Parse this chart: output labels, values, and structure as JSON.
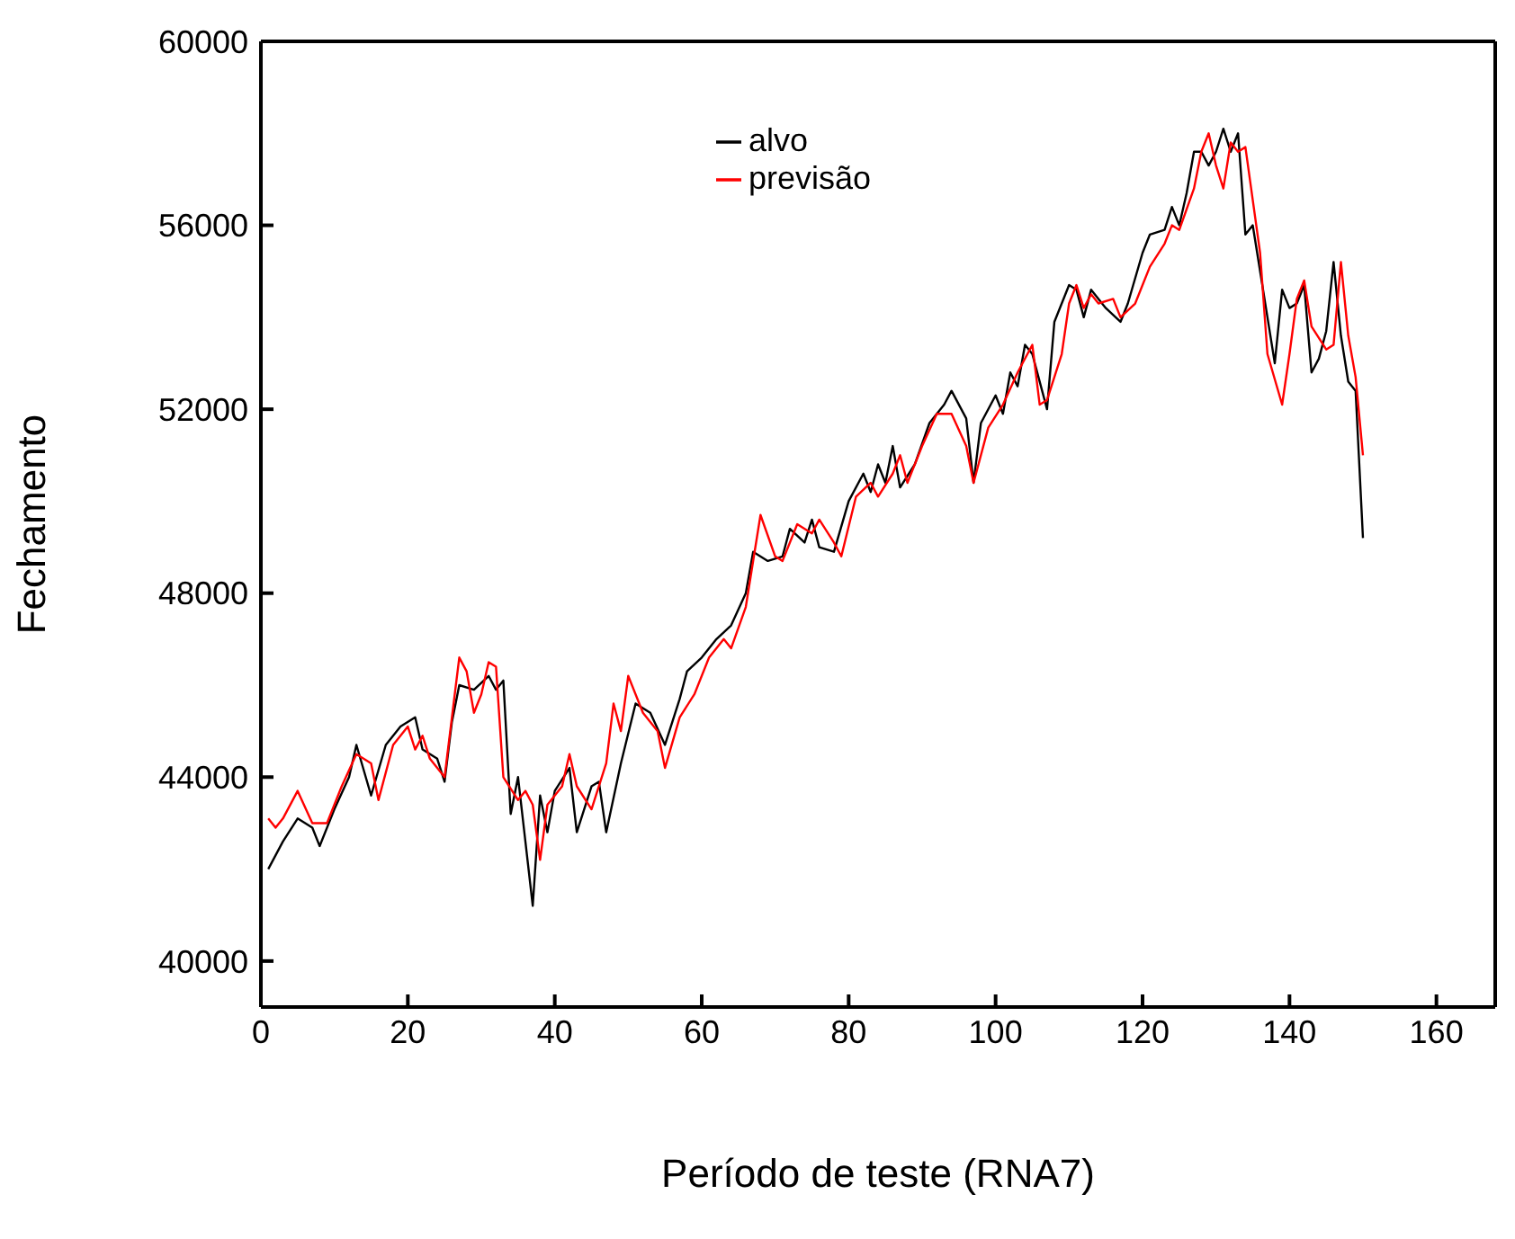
{
  "chart_data": {
    "type": "line",
    "xlabel": "Período de teste (RNA7)",
    "ylabel": "Fechamento",
    "xlim": [
      0,
      168
    ],
    "ylim": [
      39000,
      60000
    ],
    "xticks": [
      0,
      20,
      40,
      60,
      80,
      100,
      120,
      140,
      160
    ],
    "yticks": [
      40000,
      44000,
      48000,
      52000,
      56000,
      60000
    ],
    "legend": "top",
    "marker": "none",
    "line_style": "solid",
    "series": [
      {
        "name": "alvo",
        "color": "#000000",
        "x": [
          1,
          3,
          5,
          7,
          8,
          10,
          12,
          13,
          15,
          17,
          19,
          21,
          22,
          24,
          25,
          26,
          27,
          29,
          31,
          32,
          33,
          34,
          35,
          37,
          38,
          39,
          40,
          42,
          43,
          45,
          46,
          47,
          49,
          51,
          53,
          55,
          57,
          58,
          60,
          62,
          64,
          66,
          67,
          69,
          71,
          72,
          74,
          75,
          76,
          78,
          80,
          82,
          83,
          84,
          85,
          86,
          87,
          89,
          91,
          93,
          94,
          96,
          97,
          98,
          100,
          101,
          102,
          103,
          104,
          105,
          107,
          108,
          110,
          111,
          112,
          113,
          115,
          117,
          118,
          120,
          121,
          123,
          124,
          125,
          126,
          127,
          128,
          129,
          130,
          131,
          132,
          133,
          134,
          135,
          137,
          138,
          139,
          140,
          141,
          142,
          143,
          144,
          145,
          146,
          147,
          148,
          149,
          150
        ],
        "values": [
          42000,
          42600,
          43100,
          42900,
          42500,
          43300,
          44000,
          44700,
          43600,
          44700,
          45100,
          45300,
          44600,
          44400,
          43900,
          45200,
          46000,
          45900,
          46200,
          45900,
          46100,
          43200,
          44000,
          41200,
          43600,
          42800,
          43700,
          44200,
          42800,
          43800,
          43900,
          42800,
          44300,
          45600,
          45400,
          44700,
          45700,
          46300,
          46600,
          47000,
          47300,
          48000,
          48900,
          48700,
          48800,
          49400,
          49100,
          49600,
          49000,
          48900,
          50000,
          50600,
          50200,
          50800,
          50400,
          51200,
          50300,
          50800,
          51700,
          52100,
          52400,
          51800,
          50400,
          51700,
          52300,
          51900,
          52800,
          52500,
          53400,
          53200,
          52000,
          53900,
          54700,
          54600,
          54000,
          54600,
          54200,
          53900,
          54300,
          55400,
          55800,
          55900,
          56400,
          56000,
          56700,
          57600,
          57600,
          57300,
          57600,
          58100,
          57600,
          58000,
          55800,
          56000,
          54000,
          53000,
          54600,
          54200,
          54300,
          54700,
          52800,
          53100,
          53700,
          55200,
          53600,
          52600,
          52400,
          49200
        ]
      },
      {
        "name": "previsão",
        "color": "#ff0000",
        "x": [
          1,
          2,
          3,
          5,
          7,
          9,
          11,
          13,
          15,
          16,
          18,
          20,
          21,
          22,
          23,
          25,
          27,
          28,
          29,
          30,
          31,
          32,
          33,
          35,
          36,
          37,
          38,
          39,
          41,
          42,
          43,
          45,
          47,
          48,
          49,
          50,
          52,
          54,
          55,
          57,
          59,
          61,
          63,
          64,
          66,
          68,
          70,
          71,
          73,
          75,
          76,
          78,
          79,
          81,
          83,
          84,
          86,
          87,
          88,
          90,
          92,
          94,
          96,
          97,
          99,
          101,
          103,
          105,
          106,
          107,
          109,
          110,
          111,
          112,
          113,
          114,
          116,
          117,
          119,
          121,
          123,
          124,
          125,
          127,
          128,
          129,
          130,
          131,
          132,
          133,
          134,
          136,
          137,
          139,
          140,
          141,
          142,
          143,
          145,
          146,
          147,
          148,
          149,
          150
        ],
        "values": [
          43100,
          42900,
          43100,
          43700,
          43000,
          43000,
          43800,
          44500,
          44300,
          43500,
          44700,
          45100,
          44600,
          44900,
          44400,
          44000,
          46600,
          46300,
          45400,
          45800,
          46500,
          46400,
          44000,
          43500,
          43700,
          43400,
          42200,
          43400,
          43800,
          44500,
          43800,
          43300,
          44300,
          45600,
          45000,
          46200,
          45400,
          45000,
          44200,
          45300,
          45800,
          46600,
          47000,
          46800,
          47700,
          49700,
          48800,
          48700,
          49500,
          49300,
          49600,
          49100,
          48800,
          50100,
          50400,
          50100,
          50600,
          51000,
          50400,
          51200,
          51900,
          51900,
          51200,
          50400,
          51600,
          52100,
          52800,
          53400,
          52100,
          52200,
          53200,
          54300,
          54700,
          54200,
          54500,
          54300,
          54400,
          54000,
          54300,
          55100,
          55600,
          56000,
          55900,
          56800,
          57600,
          58000,
          57300,
          56800,
          57800,
          57600,
          57700,
          55400,
          53200,
          52100,
          53200,
          54400,
          54800,
          53800,
          53300,
          53400,
          55200,
          53600,
          52700,
          51000
        ]
      }
    ]
  }
}
